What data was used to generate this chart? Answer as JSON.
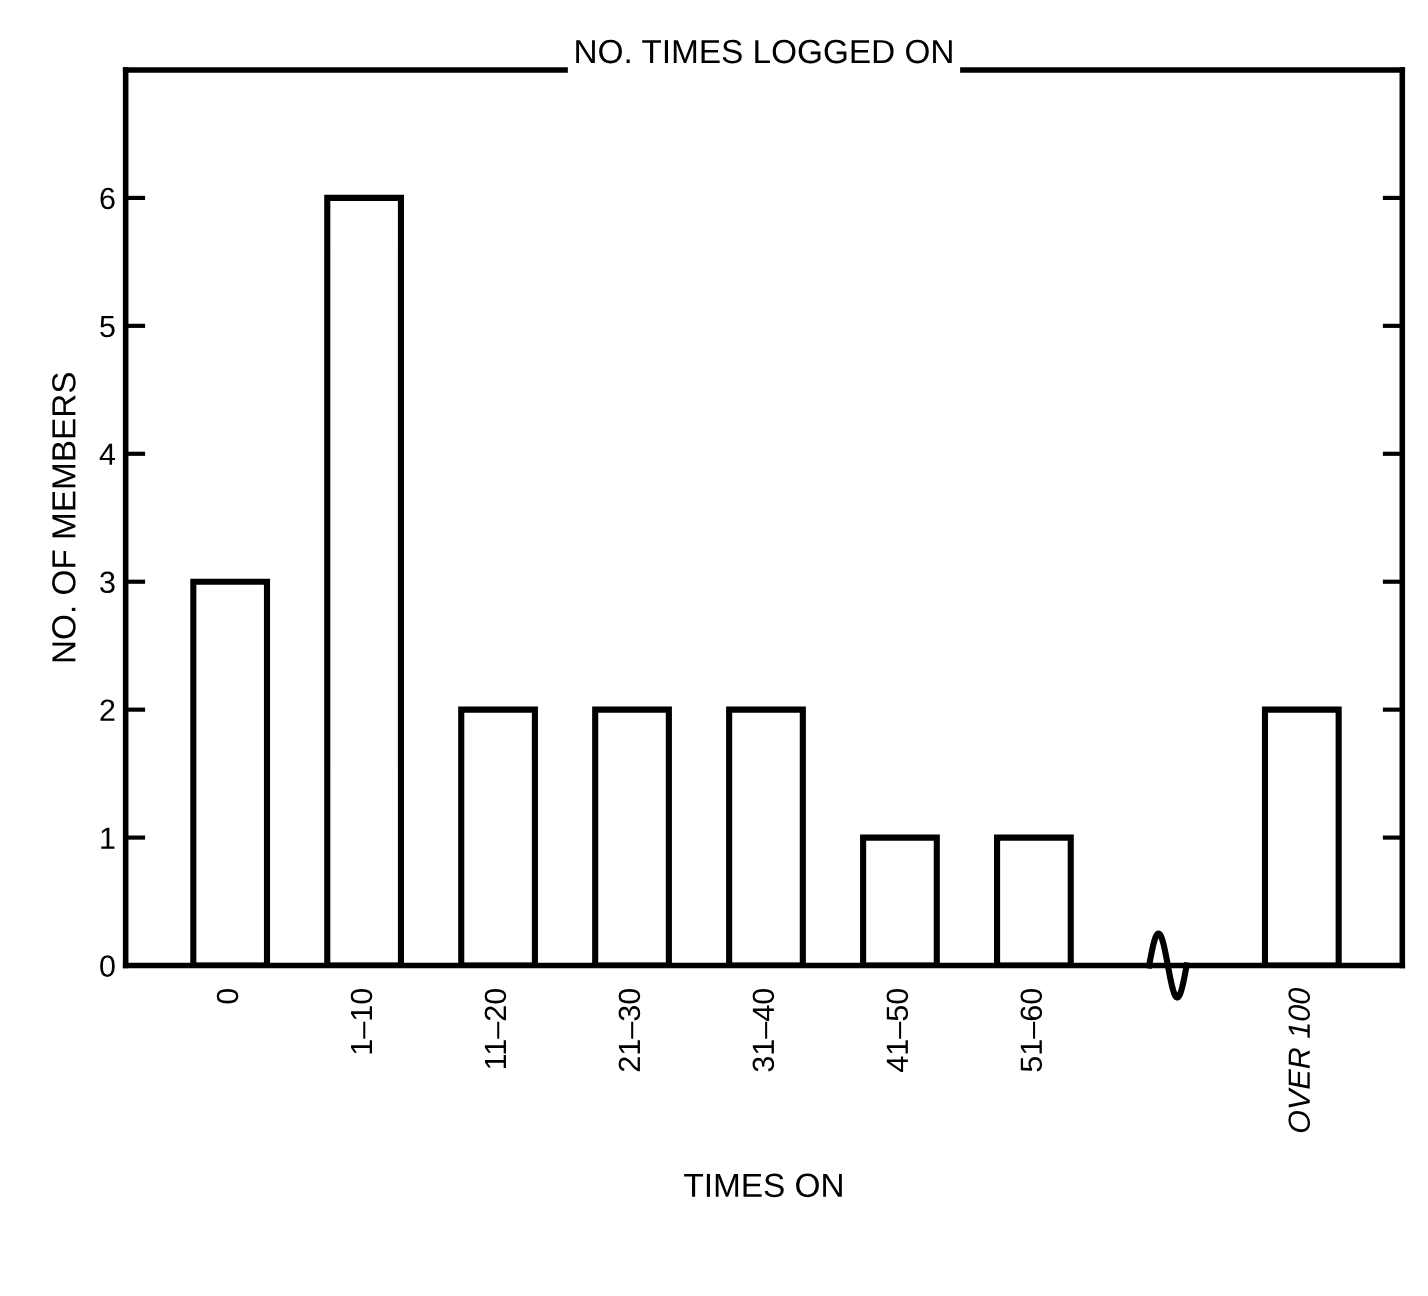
{
  "chart_data": {
    "type": "bar",
    "title": "NO. TIMES LOGGED ON",
    "xlabel": "TIMES ON",
    "ylabel": "NO. OF MEMBERS",
    "categories": [
      "0",
      "1–10",
      "11–20",
      "21–30",
      "31–40",
      "41–50",
      "51–60",
      null,
      "OVER 100"
    ],
    "values": [
      3,
      6,
      2,
      2,
      2,
      1,
      1,
      null,
      2
    ],
    "color": "#ffffff",
    "ylim": [
      0,
      7
    ],
    "yticks": [
      0,
      1,
      2,
      3,
      4,
      5,
      6
    ],
    "grid": false,
    "legend": false
  }
}
